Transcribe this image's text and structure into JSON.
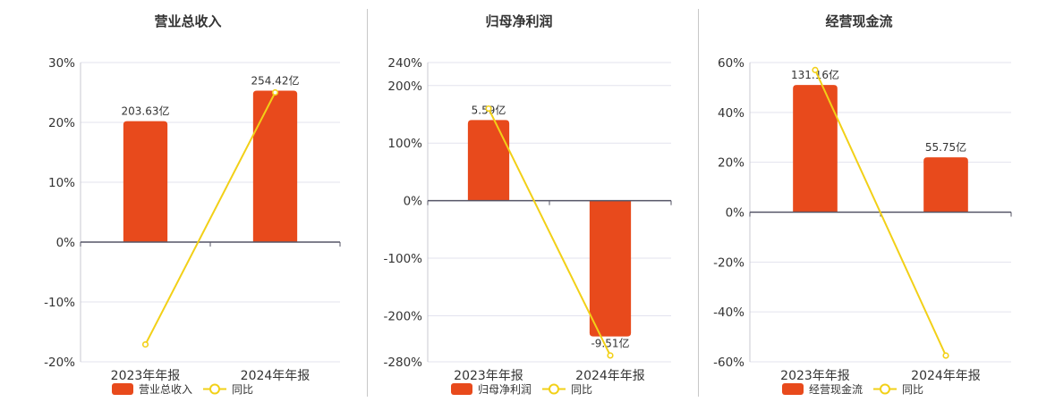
{
  "colors": {
    "bar": "#e84a1c",
    "line": "#f2d017",
    "grid": "#e3e3ee",
    "axis": "#555566"
  },
  "chart_data": [
    {
      "type": "bar",
      "title": "营业总收入",
      "categories": [
        "2023年年报",
        "2024年年报"
      ],
      "bar_values": [
        20.2,
        25.3
      ],
      "bar_labels": [
        "203.63亿",
        "254.42亿"
      ],
      "line_values": [
        -17.1,
        25.0
      ],
      "ylim": [
        -20,
        30
      ],
      "yticks": [
        30,
        20,
        10,
        0,
        -10,
        -20
      ],
      "legend": {
        "bar": "营业总收入",
        "line": "同比"
      }
    },
    {
      "type": "bar",
      "title": "归母净利润",
      "categories": [
        "2023年年报",
        "2024年年报"
      ],
      "bar_values": [
        140,
        -236
      ],
      "bar_labels": [
        "5.59亿",
        "-9.51亿"
      ],
      "line_values": [
        160,
        -269
      ],
      "ylim": [
        -280,
        240
      ],
      "yticks": [
        240,
        200,
        100,
        0,
        -100,
        -200,
        -280
      ],
      "legend": {
        "bar": "归母净利润",
        "line": "同比"
      }
    },
    {
      "type": "bar",
      "title": "经营现金流",
      "categories": [
        "2023年年报",
        "2024年年报"
      ],
      "bar_values": [
        51,
        22
      ],
      "bar_labels": [
        "131.16亿",
        "55.75亿"
      ],
      "line_values": [
        57,
        -57.5
      ],
      "ylim": [
        -60,
        60
      ],
      "yticks": [
        60,
        40,
        20,
        0,
        -20,
        -40,
        -60
      ],
      "legend": {
        "bar": "经营现金流",
        "line": "同比"
      }
    }
  ]
}
